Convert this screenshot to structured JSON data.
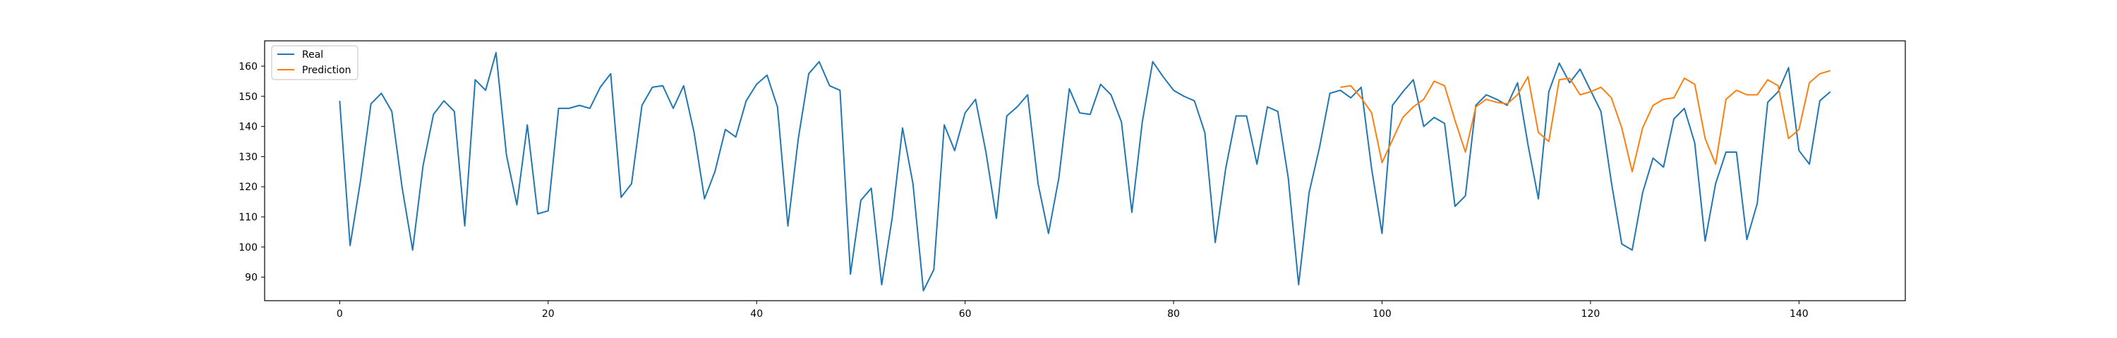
{
  "chart_data": {
    "type": "line",
    "title": "",
    "xlabel": "",
    "ylabel": "",
    "xlim": [
      -7.2,
      150.2
    ],
    "ylim": [
      82.2,
      168.4
    ],
    "xticks": [
      0,
      20,
      40,
      60,
      80,
      100,
      120,
      140
    ],
    "yticks": [
      90,
      100,
      110,
      120,
      130,
      140,
      150,
      160
    ],
    "grid": false,
    "legend_position": "top-left",
    "series": [
      {
        "name": "Real",
        "color": "#1f77b4",
        "x_start": 0,
        "values": [
          148.5,
          100.5,
          122,
          147.5,
          151,
          145,
          119.5,
          99,
          127,
          144,
          148.5,
          145,
          107,
          155.5,
          152,
          164.5,
          130.5,
          114,
          140.5,
          111,
          112,
          146,
          146,
          147,
          146,
          153,
          157.5,
          116.5,
          121,
          147,
          153,
          153.5,
          146,
          153.5,
          138,
          116,
          125,
          139,
          136.5,
          148.5,
          154,
          157,
          146.5,
          107,
          136,
          157.5,
          161.5,
          153.5,
          152,
          91,
          115.5,
          119.5,
          87.5,
          109.5,
          139.5,
          121,
          85.5,
          92.5,
          140.5,
          132,
          144.5,
          149,
          131.5,
          109.5,
          143.5,
          146.5,
          150.5,
          121,
          104.5,
          123,
          152.5,
          144.5,
          144,
          154,
          150.5,
          141.5,
          111.5,
          141.5,
          161.5,
          156.5,
          152,
          150,
          148.5,
          138,
          101.5,
          126,
          143.5,
          143.5,
          127.5,
          146.5,
          145,
          123,
          87.5,
          118,
          133,
          151,
          152,
          149.5,
          153,
          126,
          104.5,
          147,
          151.5,
          155.5,
          140,
          143,
          141,
          113.5,
          117,
          147,
          150.5,
          149,
          147,
          154.5,
          134,
          116,
          151.5,
          161,
          154.5,
          159,
          152,
          145,
          121.5,
          101,
          99,
          118,
          129.5,
          126.5,
          142.5,
          146,
          134.5,
          102,
          121,
          131.5,
          131.5,
          102.5,
          114.5,
          148,
          151.5,
          159.5,
          132,
          127.5,
          148.5,
          151.5
        ]
      },
      {
        "name": "Prediction",
        "color": "#ff7f0e",
        "x_start": 96,
        "values": [
          153,
          153.5,
          149.5,
          144.5,
          128,
          135.5,
          143,
          146.5,
          149,
          155,
          153.5,
          142,
          131.5,
          146.5,
          149,
          148,
          147.5,
          150.5,
          156.5,
          138,
          135,
          155.5,
          156,
          150.5,
          151.5,
          153,
          149.5,
          139.5,
          125,
          139.5,
          147,
          149,
          149.5,
          156,
          154,
          136,
          127.5,
          149,
          152,
          150.5,
          150.5,
          155.5,
          153.5,
          136,
          139,
          154.5,
          157.5,
          158.5
        ]
      }
    ]
  }
}
